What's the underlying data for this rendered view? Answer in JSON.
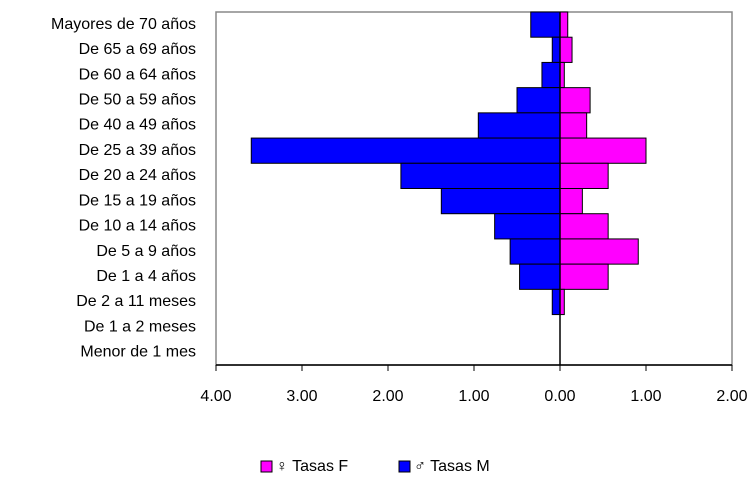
{
  "chart_data": {
    "type": "pyramid",
    "categories": [
      "Mayores de 70 años",
      "De 65 a 69 años",
      "De 60 a 64 años",
      "De 50 a 59 años",
      "De 40 a 49 años",
      "De 25 a 39 años",
      "De 20 a 24 años",
      "De 15 a 19 años",
      "De 10 a 14 años",
      "De 5 a 9 años",
      "De 1 a 4 años",
      "De 2 a 11 meses",
      "De 1 a 2 meses",
      "Menor de 1 mes"
    ],
    "series": [
      {
        "name": "♀ Tasas F",
        "color": "#ff00ff",
        "values": [
          0.09,
          0.14,
          0.05,
          0.35,
          0.31,
          1.0,
          0.56,
          0.26,
          0.56,
          0.91,
          0.56,
          0.05,
          0,
          0
        ]
      },
      {
        "name": "♂ Tasas M",
        "color": "#0000ff",
        "values": [
          -0.34,
          -0.09,
          -0.21,
          -0.5,
          -0.95,
          -3.59,
          -1.85,
          -1.38,
          -0.76,
          -0.58,
          -0.47,
          -0.09,
          0,
          0
        ]
      }
    ],
    "xlim": [
      -4,
      2
    ],
    "xticks": [
      {
        "value": -4,
        "label": "4.00"
      },
      {
        "value": -3,
        "label": "3.00"
      },
      {
        "value": -2,
        "label": "2.00"
      },
      {
        "value": -1,
        "label": "1.00"
      },
      {
        "value": 0,
        "label": "0.00"
      },
      {
        "value": 1,
        "label": "1.00"
      },
      {
        "value": 2,
        "label": "2.00"
      }
    ],
    "legend": "bottom"
  }
}
